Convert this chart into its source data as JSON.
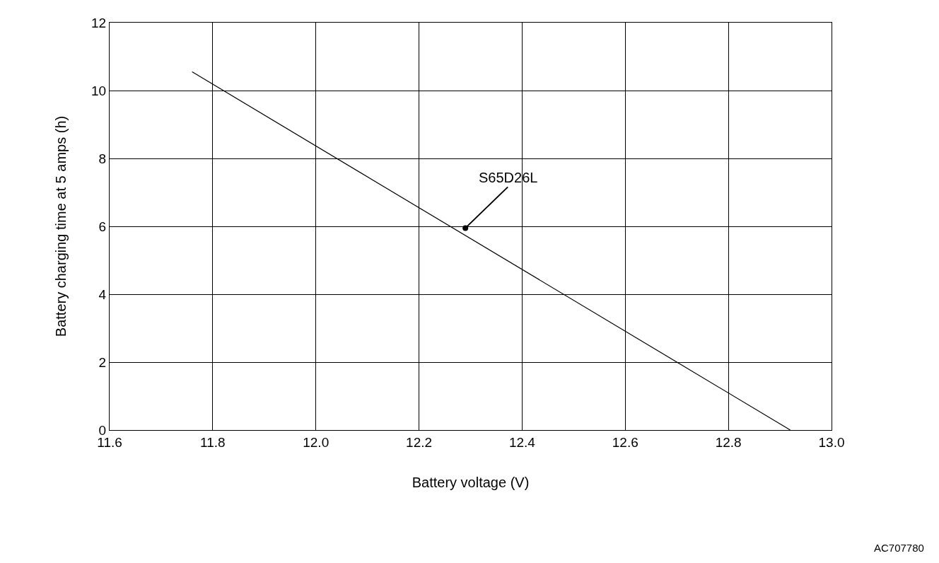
{
  "chart_data": {
    "type": "line",
    "xlabel": "Battery voltage (V)",
    "ylabel": "Battery charging time at 5 amps (h)",
    "series": [
      {
        "color": "#000000",
        "x": [
          11.76,
          12.92
        ],
        "values": [
          10.55,
          0
        ]
      }
    ],
    "xlim": [
      11.6,
      13.0
    ],
    "xticks": [
      {
        "value": 11.6,
        "label": "11.6"
      },
      {
        "value": 11.8,
        "label": "11.8"
      },
      {
        "value": 12.0,
        "label": "12.0"
      },
      {
        "value": 12.2,
        "label": "12.2"
      },
      {
        "value": 12.4,
        "label": "12.4"
      },
      {
        "value": 12.6,
        "label": "12.6"
      },
      {
        "value": 12.8,
        "label": "12.8"
      },
      {
        "value": 13.0,
        "label": "13.0"
      }
    ],
    "ylim": [
      0,
      12
    ],
    "yticks": [
      0,
      2,
      4,
      6,
      8,
      10,
      12
    ],
    "grid": true,
    "marker": "none",
    "line_style": "solid",
    "annotations": [
      {
        "text": "S65D26L",
        "x": 12.29,
        "y": 5.95
      },
      "AC707780"
    ]
  }
}
